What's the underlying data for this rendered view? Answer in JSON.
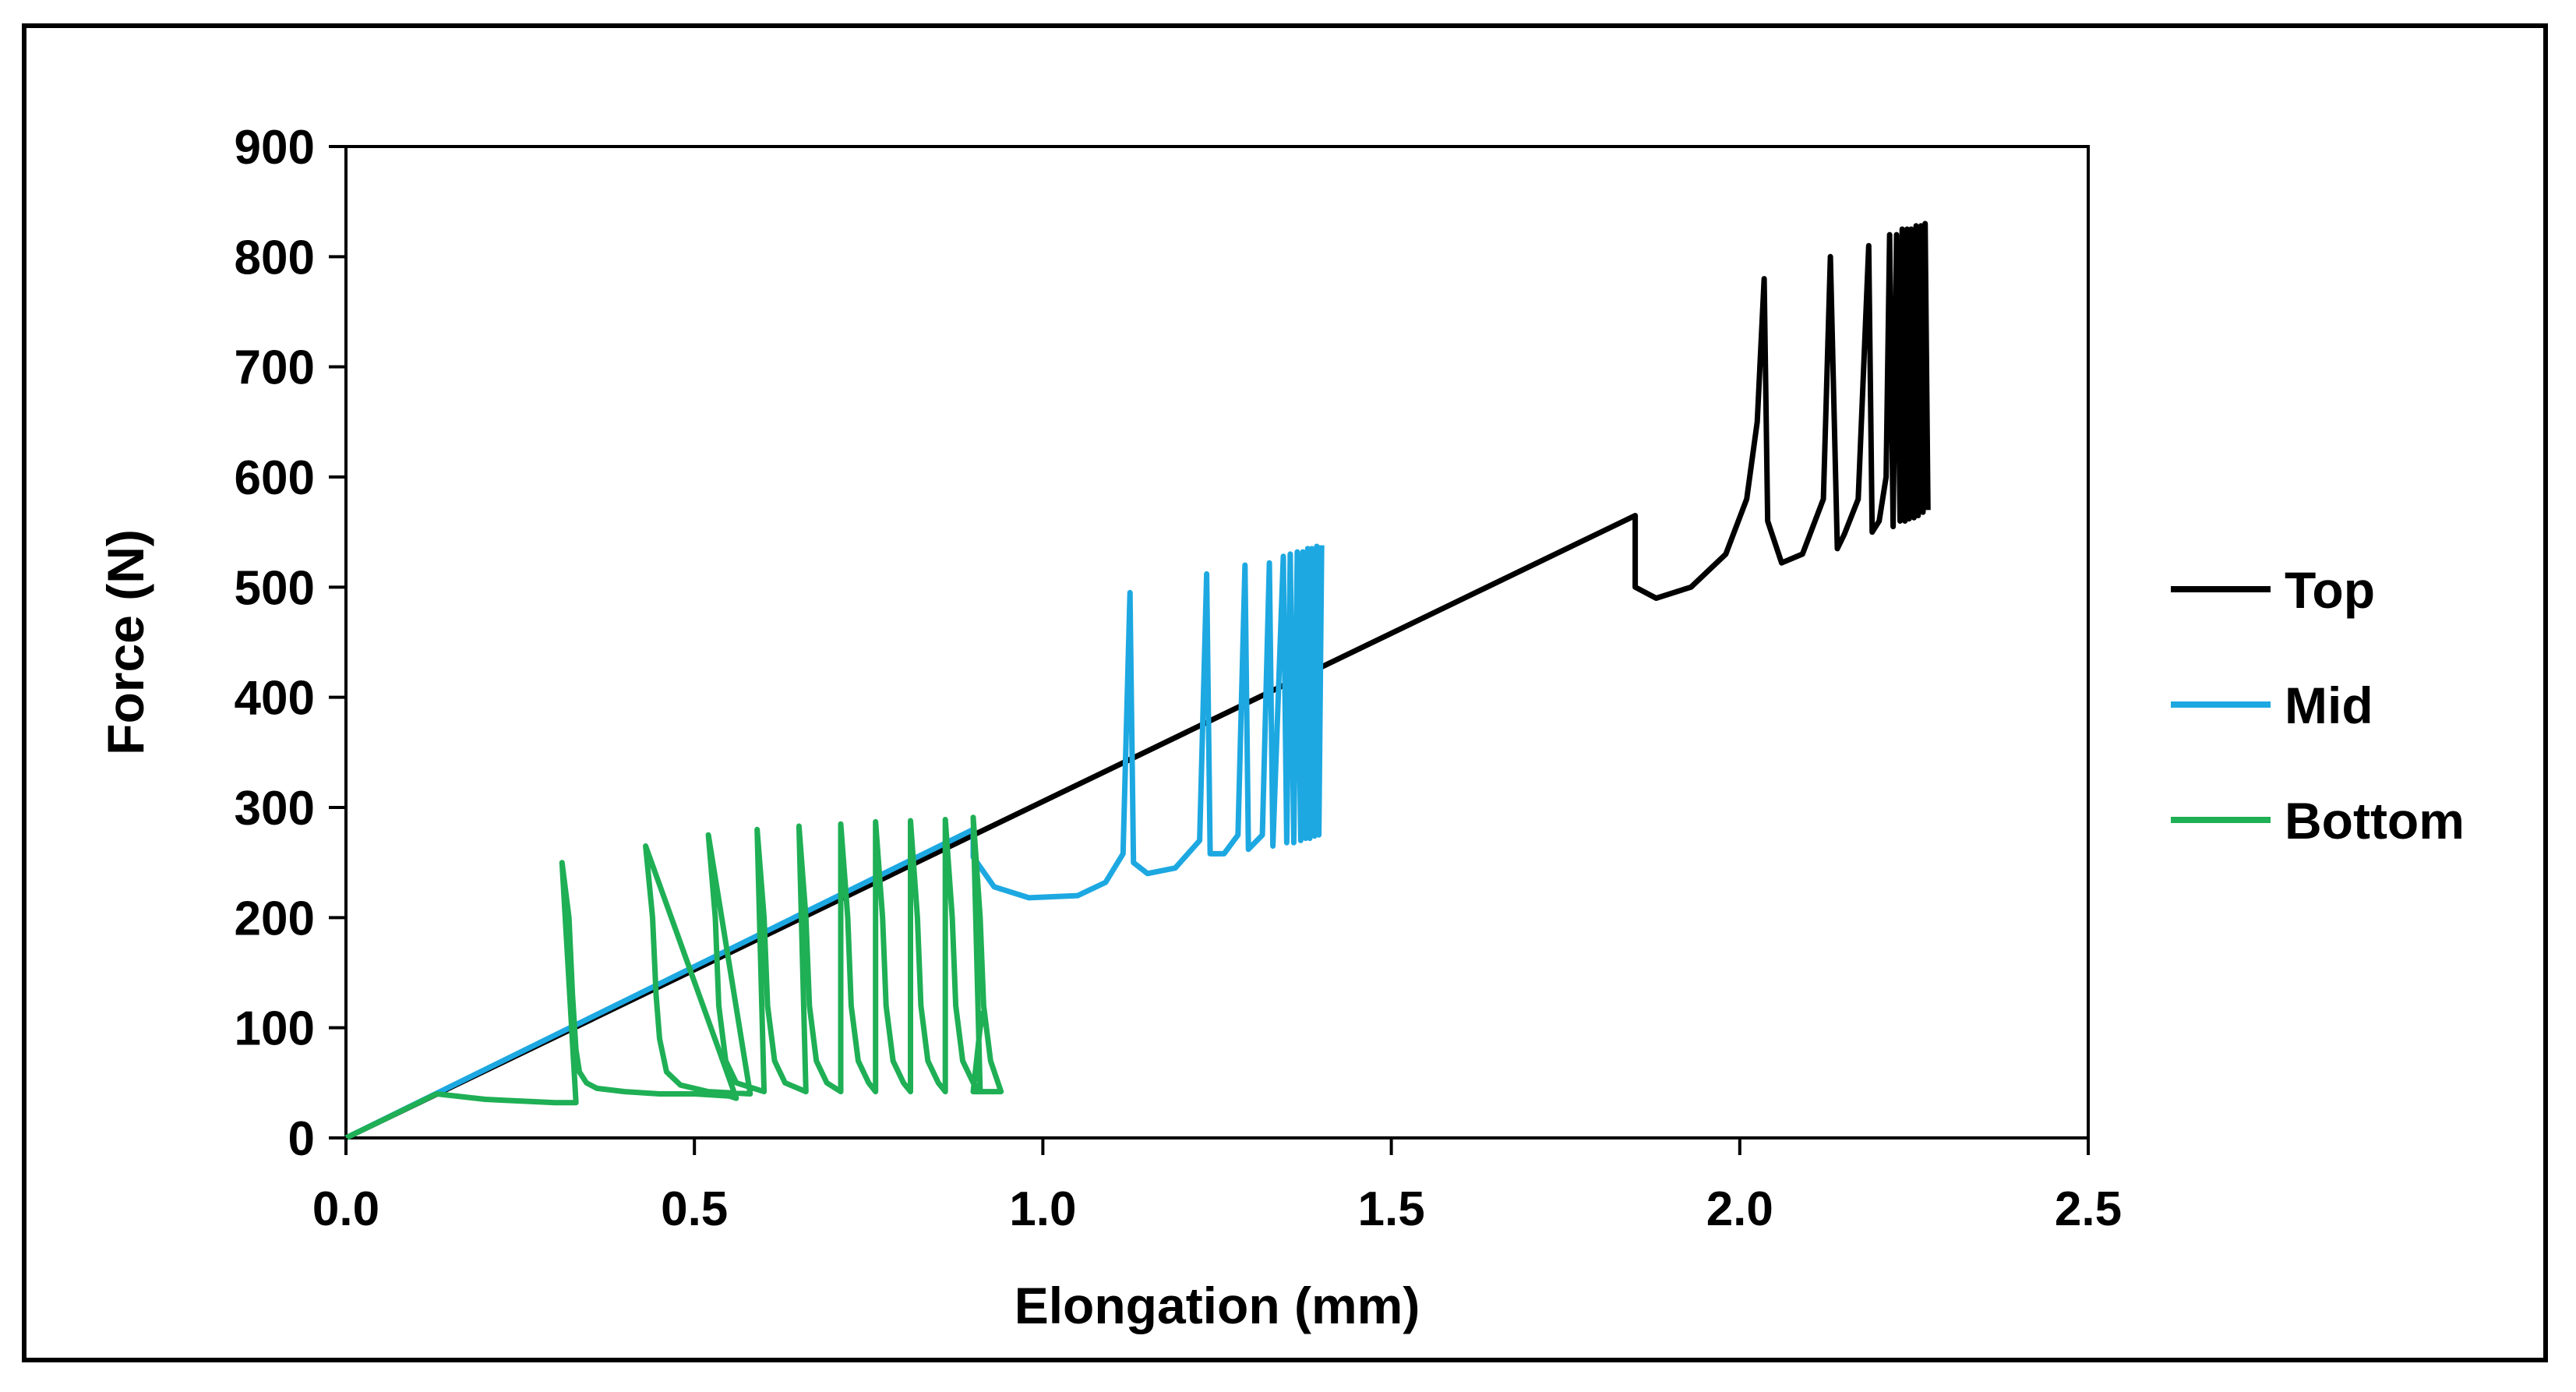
{
  "chart_data": {
    "type": "line",
    "title": "",
    "xlabel": "Elongation (mm)",
    "ylabel": "Force (N)",
    "xlim": [
      0,
      2.5
    ],
    "ylim": [
      0,
      900
    ],
    "xticks": [
      0,
      0.5,
      1,
      1.5,
      2,
      2.5
    ],
    "xtick_labels": [
      "0.0",
      "0.5",
      "1.0",
      "1.5",
      "2.0",
      "2.5"
    ],
    "yticks": [
      0,
      100,
      200,
      300,
      400,
      500,
      600,
      700,
      800,
      900
    ],
    "ytick_labels": [
      "0",
      "100",
      "200",
      "300",
      "400",
      "500",
      "600",
      "700",
      "800",
      "900"
    ],
    "grid": false,
    "legend_position": "right",
    "series": [
      {
        "name": "Top",
        "color": "#000000",
        "x": [
          0,
          1.85,
          1.85,
          1.88,
          1.93,
          1.98,
          2.01,
          2.025,
          2.035,
          2.04,
          2.06,
          2.09,
          2.12,
          2.13,
          2.14,
          2.15,
          2.17,
          2.185,
          2.19,
          2.2,
          2.21,
          2.215,
          2.22,
          2.225,
          2.23,
          2.233,
          2.237,
          2.24,
          2.243,
          2.246,
          2.25,
          2.253,
          2.256,
          2.26,
          2.263,
          2.266,
          2.27
        ],
        "y": [
          0,
          565,
          500,
          490,
          500,
          530,
          580,
          650,
          780,
          560,
          522,
          530,
          580,
          800,
          535,
          548,
          580,
          810,
          550,
          560,
          600,
          820,
          555,
          820,
          560,
          825,
          560,
          825,
          562,
          825,
          563,
          828,
          565,
          828,
          568,
          830,
          570
        ]
      },
      {
        "name": "Mid",
        "color": "#1DA8E1",
        "x": [
          0,
          0.9,
          0.9,
          0.93,
          0.98,
          1.05,
          1.09,
          1.115,
          1.125,
          1.13,
          1.15,
          1.19,
          1.225,
          1.235,
          1.24,
          1.26,
          1.28,
          1.29,
          1.295,
          1.315,
          1.325,
          1.33,
          1.345,
          1.35,
          1.355,
          1.36,
          1.365,
          1.37,
          1.373,
          1.377,
          1.38,
          1.383,
          1.386,
          1.39,
          1.393,
          1.396,
          1.4
        ],
        "y": [
          0,
          280,
          255,
          228,
          218,
          220,
          232,
          258,
          495,
          250,
          240,
          245,
          270,
          512,
          258,
          258,
          275,
          520,
          262,
          275,
          522,
          265,
          528,
          268,
          530,
          268,
          532,
          270,
          532,
          272,
          535,
          272,
          535,
          274,
          537,
          275,
          538
        ]
      },
      {
        "name": "Bottom",
        "color": "#1FAF55",
        "x": [
          0,
          0.13,
          0.2,
          0.3,
          0.33,
          0.31,
          0.32,
          0.325,
          0.33,
          0.335,
          0.345,
          0.36,
          0.4,
          0.45,
          0.5,
          0.55,
          0.56,
          0.43,
          0.44,
          0.445,
          0.45,
          0.46,
          0.48,
          0.52,
          0.58,
          0.52,
          0.53,
          0.535,
          0.545,
          0.56,
          0.6,
          0.59,
          0.6,
          0.605,
          0.615,
          0.63,
          0.66,
          0.65,
          0.66,
          0.665,
          0.675,
          0.69,
          0.71,
          0.71,
          0.72,
          0.725,
          0.735,
          0.75,
          0.76,
          0.76,
          0.77,
          0.775,
          0.785,
          0.8,
          0.81,
          0.81,
          0.82,
          0.825,
          0.835,
          0.85,
          0.86,
          0.86,
          0.87,
          0.875,
          0.885,
          0.9,
          0.91,
          0.9,
          0.91,
          0.915,
          0.925,
          0.94,
          0.9,
          0.91,
          0.915
        ],
        "y": [
          0,
          40,
          35,
          32,
          32,
          250,
          200,
          130,
          80,
          60,
          50,
          45,
          42,
          40,
          40,
          38,
          36,
          265,
          200,
          130,
          90,
          60,
          48,
          42,
          40,
          275,
          200,
          120,
          70,
          50,
          42,
          280,
          200,
          120,
          70,
          50,
          42,
          283,
          200,
          120,
          70,
          50,
          42,
          285,
          200,
          120,
          70,
          50,
          42,
          287,
          200,
          120,
          70,
          50,
          42,
          288,
          200,
          120,
          70,
          50,
          42,
          289,
          200,
          120,
          70,
          50,
          42,
          291,
          200,
          120,
          70,
          42,
          42,
          100,
          115
        ]
      }
    ]
  }
}
